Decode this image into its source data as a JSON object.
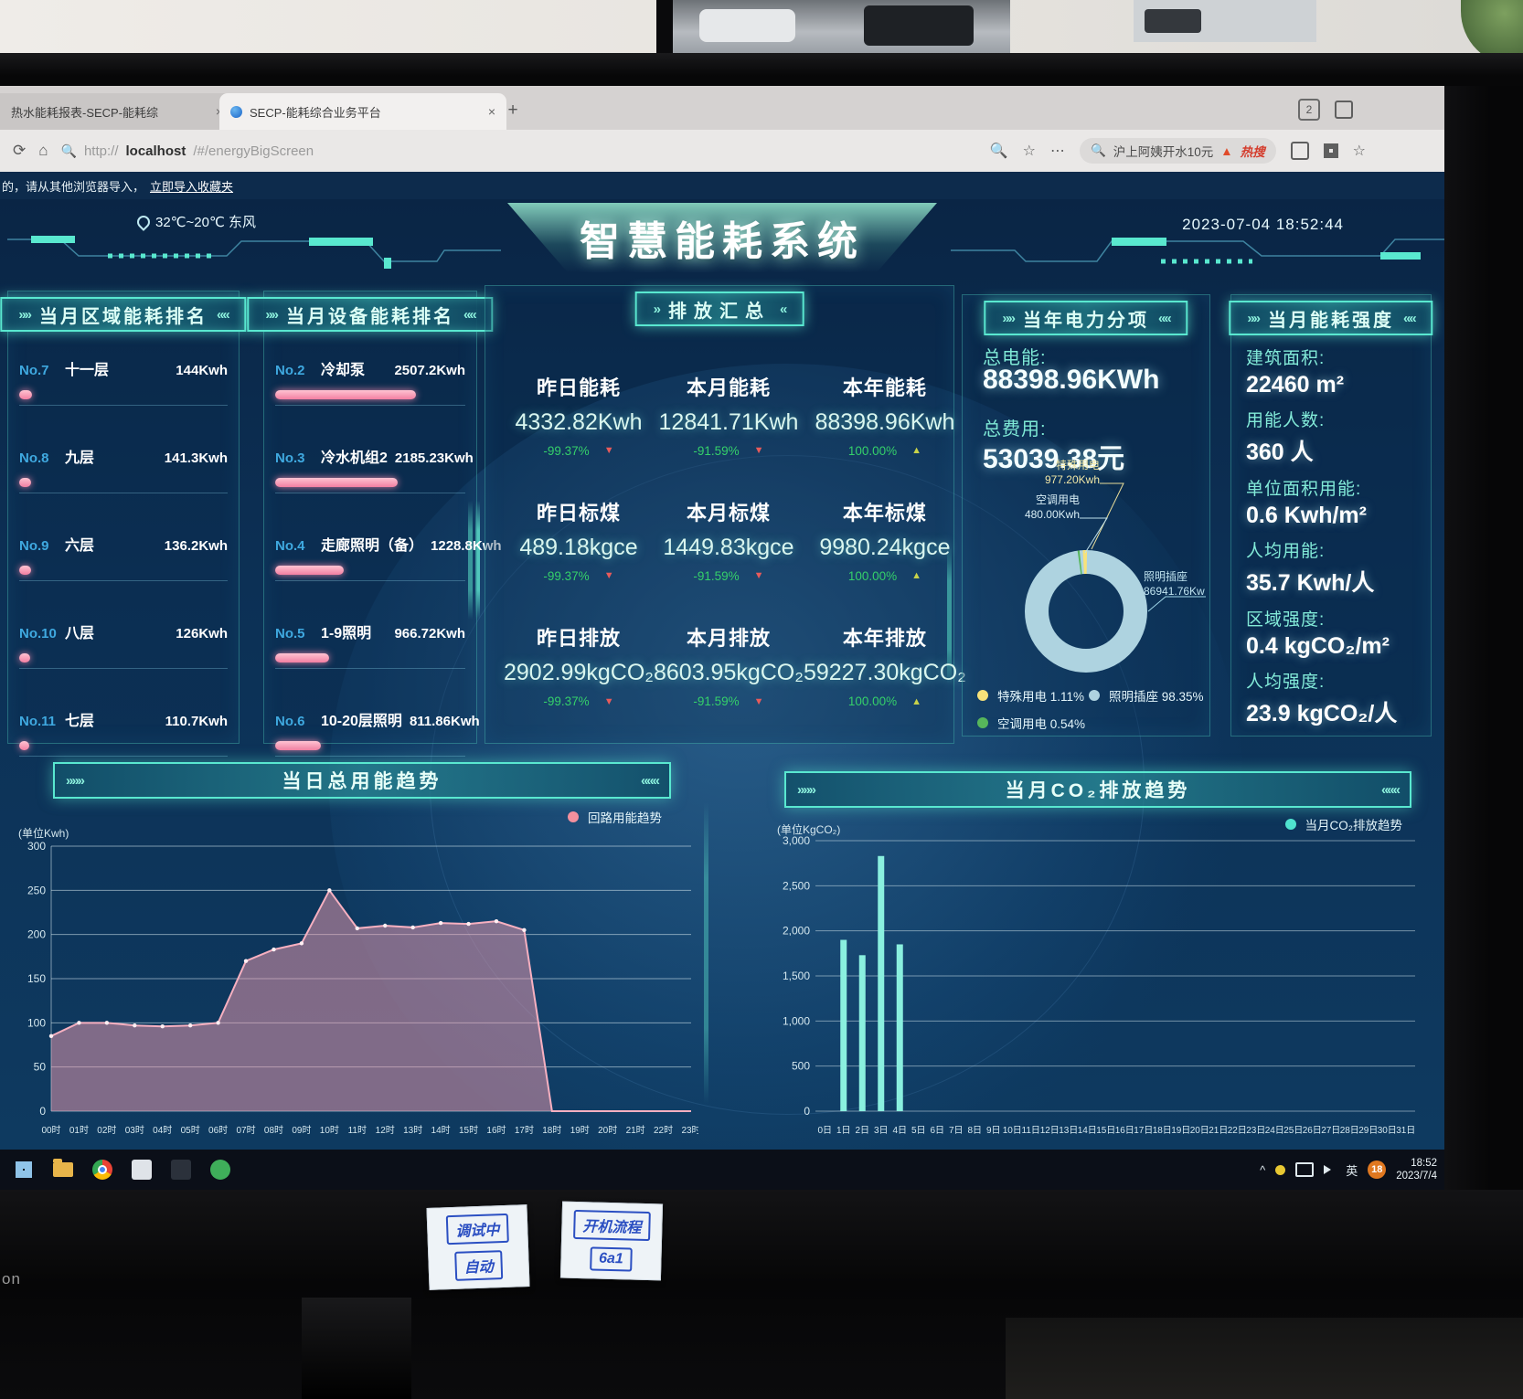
{
  "browser": {
    "tabs": [
      {
        "title": "热水能耗报表-SECP-能耗综",
        "close": "×"
      },
      {
        "title": "SECP-能耗综合业务平台",
        "close": "×"
      }
    ],
    "new_tab": "+",
    "badge_count": "2",
    "url_scheme": "http://",
    "url_host": "localhost",
    "url_path": "/#/energyBigScreen",
    "search_text": "沪上阿姨开水10元",
    "hot_label": "热搜"
  },
  "import_bar": {
    "text": "的，请从其他浏览器导入，",
    "link": "立即导入收藏夹"
  },
  "header": {
    "weather": "32℃~20℃ 东风",
    "title": "智慧能耗系统",
    "datetime": "2023-07-04 18:52:44"
  },
  "panels": {
    "region_rank": {
      "title": "当月区域能耗排名",
      "items": [
        {
          "no": "No.7",
          "name": "十一层",
          "value": "144Kwh",
          "num": 144
        },
        {
          "no": "No.8",
          "name": "九层",
          "value": "141.3Kwh",
          "num": 141.3
        },
        {
          "no": "No.9",
          "name": "六层",
          "value": "136.2Kwh",
          "num": 136.2
        },
        {
          "no": "No.10",
          "name": "八层",
          "value": "126Kwh",
          "num": 126
        },
        {
          "no": "No.11",
          "name": "七层",
          "value": "110.7Kwh",
          "num": 110.7
        }
      ]
    },
    "device_rank": {
      "title": "当月设备能耗排名",
      "items": [
        {
          "no": "No.2",
          "name": "冷却泵",
          "value": "2507.2Kwh",
          "num": 2507.2
        },
        {
          "no": "No.3",
          "name": "冷水机组2",
          "value": "2185.23Kwh",
          "num": 2185.23
        },
        {
          "no": "No.4",
          "name": "走廊照明（备）",
          "value": "1228.8Kwh",
          "num": 1228.8
        },
        {
          "no": "No.5",
          "name": "1-9照明",
          "value": "966.72Kwh",
          "num": 966.72
        },
        {
          "no": "No.6",
          "name": "10-20层照明",
          "value": "811.86Kwh",
          "num": 811.86
        }
      ]
    },
    "emission": {
      "title": "排放汇总",
      "cells": [
        {
          "label": "昨日能耗",
          "value": "4332.82Kwh",
          "pct": "-99.37%",
          "dir": "down"
        },
        {
          "label": "本月能耗",
          "value": "12841.71Kwh",
          "pct": "-91.59%",
          "dir": "down"
        },
        {
          "label": "本年能耗",
          "value": "88398.96Kwh",
          "pct": "100.00%",
          "dir": "up"
        },
        {
          "label": "昨日标煤",
          "value": "489.18kgce",
          "pct": "-99.37%",
          "dir": "down"
        },
        {
          "label": "本月标煤",
          "value": "1449.83kgce",
          "pct": "-91.59%",
          "dir": "down"
        },
        {
          "label": "本年标煤",
          "value": "9980.24kgce",
          "pct": "100.00%",
          "dir": "up"
        },
        {
          "label": "昨日排放",
          "value": "2902.99kgCO₂",
          "pct": "-99.37%",
          "dir": "down"
        },
        {
          "label": "本月排放",
          "value": "8603.95kgCO₂",
          "pct": "-91.59%",
          "dir": "down"
        },
        {
          "label": "本年排放",
          "value": "59227.30kgCO₂",
          "pct": "100.00%",
          "dir": "up"
        }
      ]
    },
    "power_split": {
      "title": "当年电力分项",
      "energy_label": "总电能:",
      "energy_value": "88398.96KWh",
      "cost_label": "总费用:",
      "cost_value": "53039.38元"
    },
    "intensity": {
      "title": "当月能耗强度",
      "rows": [
        {
          "label": "建筑面积:",
          "value": "22460 m²"
        },
        {
          "label": "用能人数:",
          "value": "360 人"
        },
        {
          "label": "单位面积用能:",
          "value": "0.6 Kwh/m²"
        },
        {
          "label": "人均用能:",
          "value": "35.7 Kwh/人"
        },
        {
          "label": "区域强度:",
          "value": "0.4 kgCO₂/m²"
        },
        {
          "label": "人均强度:",
          "value": "23.9 kgCO₂/人"
        }
      ]
    }
  },
  "chart_data": [
    {
      "type": "area",
      "title": "当日总用能趋势",
      "ylabel": "(单位Kwh)",
      "legend": [
        "回路用能趋势"
      ],
      "legend_color": "#f2909e",
      "ylim": [
        0,
        300
      ],
      "yticks": [
        0,
        50,
        100,
        150,
        200,
        250,
        300
      ],
      "x": [
        "00时",
        "01时",
        "02时",
        "03时",
        "04时",
        "05时",
        "06时",
        "07时",
        "08时",
        "09时",
        "10时",
        "11时",
        "12时",
        "13时",
        "14时",
        "15时",
        "16时",
        "17时",
        "18时",
        "19时",
        "20时",
        "21时",
        "22时",
        "23时"
      ],
      "values": [
        85,
        100,
        100,
        97,
        96,
        97,
        100,
        170,
        183,
        190,
        250,
        207,
        210,
        208,
        213,
        212,
        215,
        205,
        0,
        0,
        0,
        0,
        0,
        0
      ]
    },
    {
      "type": "bar",
      "title": "当月CO₂排放趋势",
      "ylabel": "(单位KgCO₂)",
      "legend": [
        "当月CO₂排放趋势"
      ],
      "legend_color": "#4fe3cf",
      "ylim": [
        0,
        3000
      ],
      "yticks": [
        0,
        500,
        1000,
        1500,
        2000,
        2500,
        3000
      ],
      "x": [
        "0日",
        "1日",
        "2日",
        "3日",
        "4日",
        "5日",
        "6日",
        "7日",
        "8日",
        "9日",
        "10日",
        "11日",
        "12日",
        "13日",
        "14日",
        "15日",
        "16日",
        "17日",
        "18日",
        "19日",
        "20日",
        "21日",
        "22日",
        "23日",
        "24日",
        "25日",
        "26日",
        "27日",
        "28日",
        "29日",
        "30日",
        "31日"
      ],
      "values": [
        0,
        1900,
        1730,
        2830,
        1850,
        0,
        0,
        0,
        0,
        0,
        0,
        0,
        0,
        0,
        0,
        0,
        0,
        0,
        0,
        0,
        0,
        0,
        0,
        0,
        0,
        0,
        0,
        0,
        0,
        0,
        0,
        0
      ]
    },
    {
      "type": "pie",
      "title": "当年电力分项",
      "series": [
        {
          "name": "特殊用电",
          "pct": 1.11,
          "value": "977.20Kwh",
          "color": "#f7e27a"
        },
        {
          "name": "照明插座",
          "pct": 98.35,
          "value": "86941.76Kw",
          "color": "#aed3e0"
        },
        {
          "name": "空调用电",
          "pct": 0.54,
          "value": "480.00Kwh",
          "color": "#57b65b"
        }
      ]
    }
  ],
  "taskbar": {
    "time": "18:52",
    "date": "2023/7/4",
    "lang": "英",
    "badge": "18",
    "caret": "^"
  },
  "bezel": {
    "brand": "on",
    "sticker1": [
      "调试中",
      "自动"
    ],
    "sticker2": [
      "开机流程",
      "6a1"
    ]
  }
}
